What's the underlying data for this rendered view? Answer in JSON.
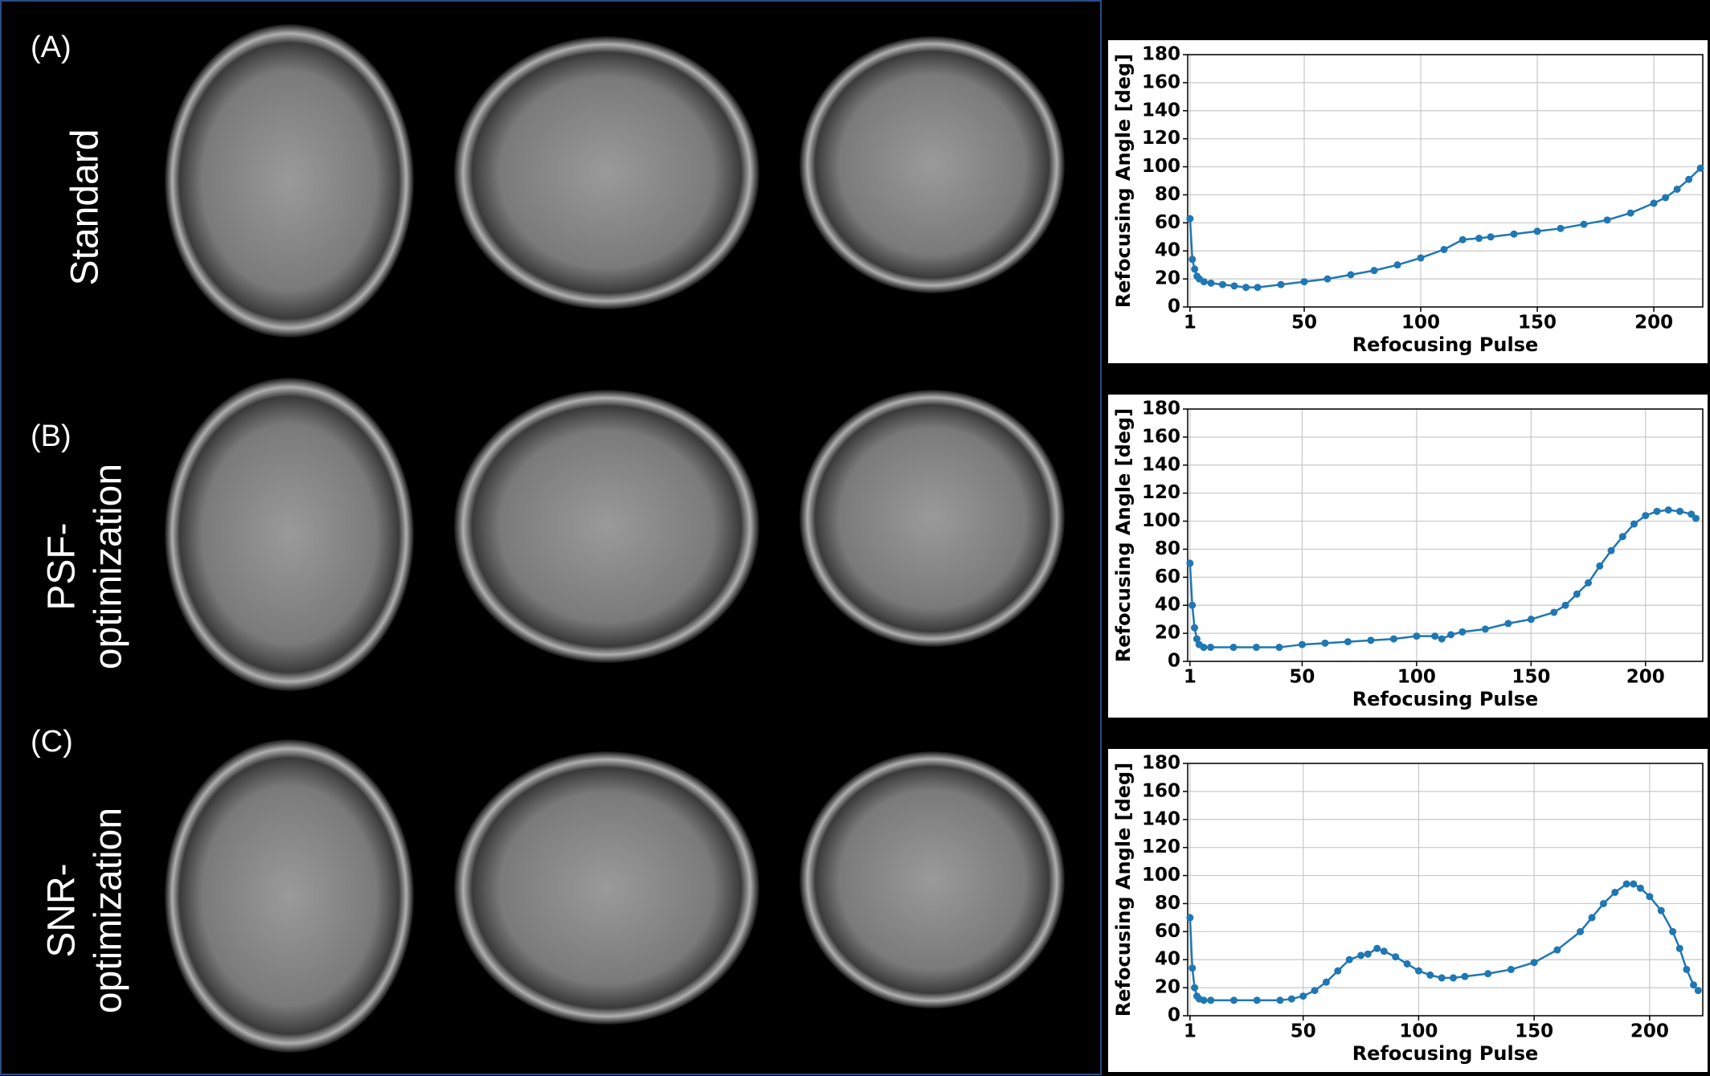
{
  "chart_data": [
    {
      "type": "line",
      "annotations": [
        "(A)",
        "Standard"
      ],
      "xlabel": "Refocusing Pulse",
      "ylabel": "Refocusing Angle [deg]",
      "x": [
        1,
        2,
        3,
        4,
        5,
        7,
        10,
        15,
        20,
        25,
        30,
        40,
        50,
        60,
        70,
        80,
        90,
        100,
        110,
        118,
        125,
        130,
        140,
        150,
        160,
        170,
        180,
        190,
        200,
        205,
        210,
        215,
        220
      ],
      "values": [
        63,
        34,
        27,
        22,
        20,
        18,
        17,
        16,
        15,
        14,
        14,
        16,
        18,
        20,
        23,
        26,
        30,
        35,
        41,
        48,
        49,
        50,
        52,
        54,
        56,
        59,
        62,
        67,
        74,
        78,
        84,
        91,
        99
      ],
      "color": "#1f77b4",
      "xlim": [
        0,
        221
      ],
      "xticks": [
        1,
        50,
        100,
        150,
        200
      ],
      "ylim": [
        0,
        180
      ],
      "yticks": [
        0,
        20,
        40,
        60,
        80,
        100,
        120,
        140,
        160,
        180
      ],
      "grid": true
    },
    {
      "type": "line",
      "annotations": [
        "(B)",
        "PSF-",
        "optimization"
      ],
      "xlabel": "Refocusing Pulse",
      "ylabel": "Refocusing Angle [deg]",
      "x": [
        1,
        2,
        3,
        4,
        5,
        7,
        10,
        20,
        30,
        40,
        50,
        60,
        70,
        80,
        90,
        100,
        108,
        111,
        115,
        120,
        130,
        140,
        150,
        160,
        165,
        170,
        175,
        180,
        185,
        190,
        195,
        200,
        205,
        210,
        215,
        220,
        222
      ],
      "values": [
        70,
        40,
        24,
        16,
        12,
        10,
        10,
        10,
        10,
        10,
        12,
        13,
        14,
        15,
        16,
        18,
        18,
        16,
        19,
        21,
        23,
        27,
        30,
        35,
        40,
        48,
        56,
        68,
        79,
        89,
        98,
        104,
        107,
        108,
        107,
        105,
        102
      ],
      "color": "#1f77b4",
      "xlim": [
        0,
        225
      ],
      "xticks": [
        1,
        50,
        100,
        150,
        200
      ],
      "ylim": [
        0,
        180
      ],
      "yticks": [
        0,
        20,
        40,
        60,
        80,
        100,
        120,
        140,
        160,
        180
      ],
      "grid": true
    },
    {
      "type": "line",
      "annotations": [
        "(C)",
        "SNR-",
        "optimization"
      ],
      "xlabel": "Refocusing Pulse",
      "ylabel": "Refocusing Angle [deg]",
      "x": [
        1,
        2,
        3,
        4,
        5,
        7,
        10,
        20,
        30,
        40,
        45,
        50,
        55,
        60,
        65,
        70,
        75,
        78,
        82,
        85,
        90,
        95,
        100,
        105,
        110,
        115,
        120,
        130,
        140,
        150,
        160,
        170,
        175,
        180,
        185,
        190,
        193,
        196,
        200,
        205,
        210,
        213,
        216,
        219,
        221
      ],
      "values": [
        70,
        34,
        20,
        14,
        12,
        11,
        11,
        11,
        11,
        11,
        12,
        14,
        18,
        24,
        32,
        40,
        43,
        44,
        48,
        46,
        42,
        37,
        32,
        29,
        27,
        27,
        28,
        30,
        33,
        38,
        47,
        60,
        70,
        80,
        88,
        94,
        94,
        91,
        85,
        75,
        60,
        48,
        33,
        22,
        18
      ],
      "color": "#1f77b4",
      "xlim": [
        0,
        223
      ],
      "xticks": [
        1,
        50,
        100,
        150,
        200
      ],
      "ylim": [
        0,
        180
      ],
      "yticks": [
        0,
        20,
        40,
        60,
        80,
        100,
        120,
        140,
        160,
        180
      ],
      "grid": true
    }
  ]
}
